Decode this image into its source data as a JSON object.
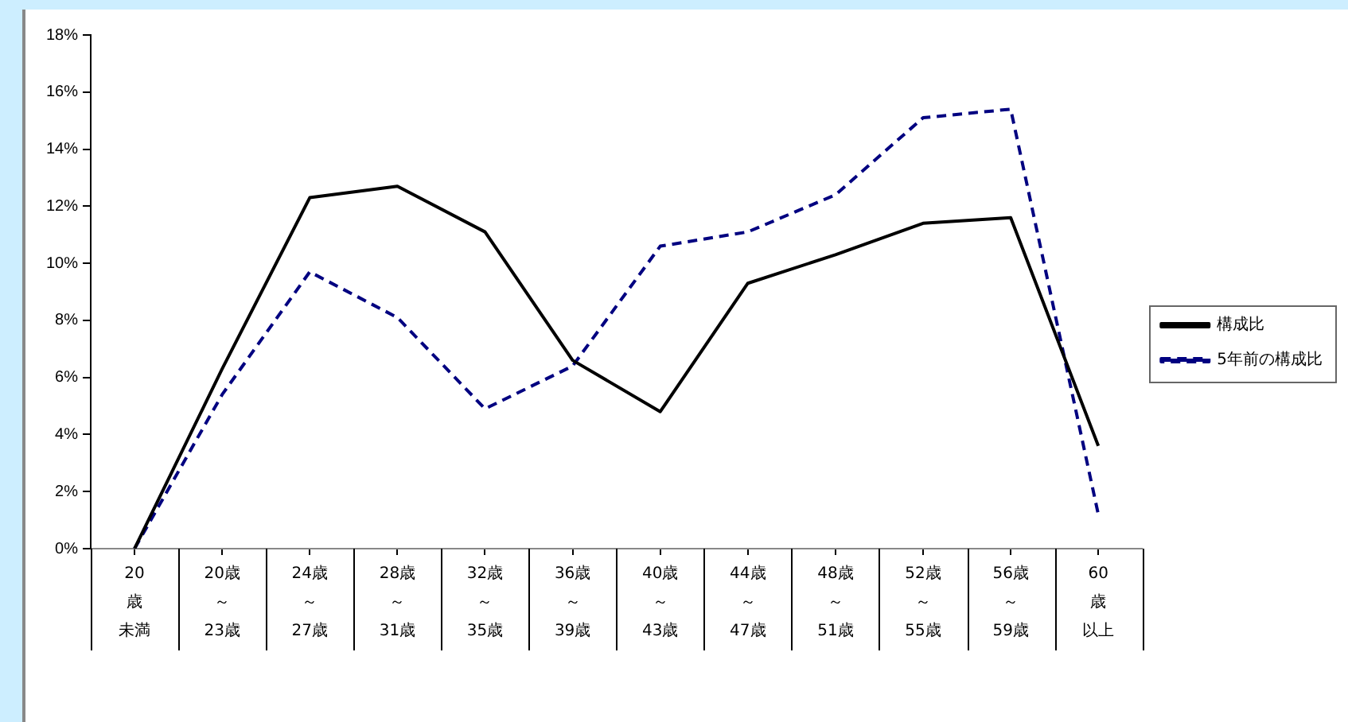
{
  "chart_data": {
    "type": "line",
    "categories": [
      "20歳未満",
      "20歳～23歳",
      "24歳～27歳",
      "28歳～31歳",
      "32歳～35歳",
      "36歳～39歳",
      "40歳～43歳",
      "44歳～47歳",
      "48歳～51歳",
      "52歳～55歳",
      "56歳～59歳",
      "60歳以上"
    ],
    "series": [
      {
        "name": "構成比",
        "color": "#000000",
        "line_style": "solid",
        "values": [
          0,
          6.3,
          12.3,
          12.7,
          11.1,
          6.6,
          4.8,
          9.3,
          10.3,
          11.4,
          11.6,
          3.6
        ]
      },
      {
        "name": "5年前の構成比",
        "color": "#000080",
        "line_style": "dashed",
        "values": [
          0,
          5.4,
          9.7,
          8.1,
          4.9,
          6.4,
          10.6,
          11.1,
          12.4,
          15.1,
          15.4,
          1.2
        ]
      }
    ],
    "ylim": [
      0,
      18
    ],
    "yticks": [
      {
        "value": 0,
        "label": "0%"
      },
      {
        "value": 2,
        "label": "2%"
      },
      {
        "value": 4,
        "label": "4%"
      },
      {
        "value": 6,
        "label": "6%"
      },
      {
        "value": 8,
        "label": "8%"
      },
      {
        "value": 10,
        "label": "10%"
      },
      {
        "value": 12,
        "label": "12%"
      },
      {
        "value": 14,
        "label": "14%"
      },
      {
        "value": 16,
        "label": "16%"
      },
      {
        "value": 18,
        "label": "18%"
      }
    ],
    "grid": false,
    "legend": "right",
    "marker": "none"
  }
}
